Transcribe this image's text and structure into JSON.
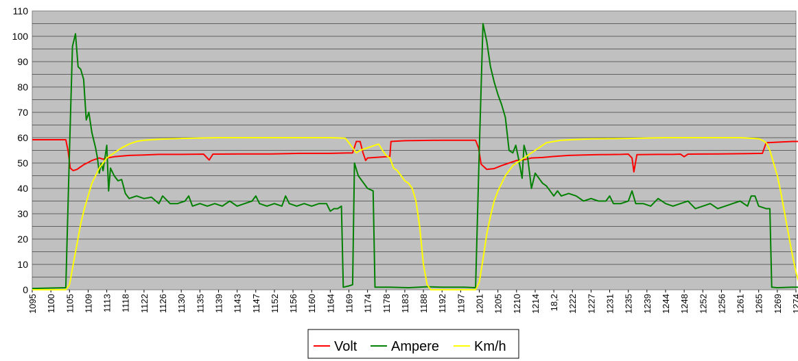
{
  "chart_data": {
    "type": "line",
    "title": "",
    "xlabel": "",
    "ylabel": "",
    "ylim": [
      0,
      110
    ],
    "y_ticks": [
      "0",
      "10",
      "20",
      "30",
      "40",
      "50",
      "60",
      "70",
      "80",
      "90",
      "100",
      "110"
    ],
    "x_tick_labels": [
      "1095",
      "1100",
      "1105",
      "1109",
      "1113",
      "1118",
      "1122",
      "1126",
      "1130",
      "1135",
      "1139",
      "1143",
      "1147",
      "1152",
      "1156",
      "1160",
      "1164",
      "1169",
      "1174",
      "1178",
      "1183",
      "1188",
      "1192",
      "1197",
      "1201",
      "1205",
      "1210",
      "1214",
      "18,2",
      "1222",
      "1227",
      "1231",
      "1235",
      "1239",
      "1244",
      "1248",
      "1252",
      "1256",
      "1261",
      "1265",
      "1269",
      "1274"
    ],
    "grid": true,
    "legend_position": "bottom",
    "background": "#c0c0c0",
    "series": [
      {
        "name": "Volt",
        "color": "#ff0000",
        "points": [
          [
            0,
            59.2
          ],
          [
            9,
            59.2
          ],
          [
            9.6,
            55
          ],
          [
            10.2,
            48
          ],
          [
            11,
            47
          ],
          [
            12,
            47.5
          ],
          [
            13,
            48.5
          ],
          [
            14,
            49.5
          ],
          [
            15,
            50.2
          ],
          [
            16,
            51
          ],
          [
            17,
            51.5
          ],
          [
            18,
            52
          ],
          [
            19,
            51.5
          ],
          [
            20,
            52
          ],
          [
            22,
            52.5
          ],
          [
            26,
            53
          ],
          [
            30,
            53.2
          ],
          [
            34,
            53.4
          ],
          [
            40,
            53.4
          ],
          [
            46,
            53.5
          ],
          [
            47.5,
            51.2
          ],
          [
            48.5,
            53.5
          ],
          [
            56,
            53.6
          ],
          [
            64,
            53.6
          ],
          [
            72,
            53.8
          ],
          [
            80,
            53.8
          ],
          [
            86,
            54
          ],
          [
            87,
            58.5
          ],
          [
            88,
            58.5
          ],
          [
            88.8,
            54
          ],
          [
            89.5,
            51
          ],
          [
            90,
            52
          ],
          [
            93,
            52.3
          ],
          [
            95,
            52.5
          ],
          [
            96,
            52.6
          ],
          [
            96.3,
            58.5
          ],
          [
            100,
            58.8
          ],
          [
            110,
            59
          ],
          [
            119,
            59
          ],
          [
            119.8,
            56
          ],
          [
            120.5,
            49.5
          ],
          [
            122,
            47.5
          ],
          [
            124,
            47.8
          ],
          [
            126,
            49
          ],
          [
            128,
            50
          ],
          [
            130,
            51
          ],
          [
            132,
            51.3
          ],
          [
            134,
            52
          ],
          [
            137,
            52.2
          ],
          [
            140,
            52.6
          ],
          [
            144,
            53
          ],
          [
            148,
            53.2
          ],
          [
            152,
            53.3
          ],
          [
            158,
            53.4
          ],
          [
            160,
            53.5
          ],
          [
            161,
            52
          ],
          [
            161.5,
            46.5
          ],
          [
            162.3,
            53.3
          ],
          [
            168,
            53.4
          ],
          [
            172,
            53.4
          ],
          [
            174,
            53.5
          ],
          [
            175,
            52.5
          ],
          [
            176,
            53.5
          ],
          [
            184,
            53.6
          ],
          [
            192,
            53.7
          ],
          [
            196,
            53.8
          ],
          [
            197,
            58
          ],
          [
            204,
            58.5
          ],
          [
            208,
            58.5
          ]
        ]
      },
      {
        "name": "Ampere",
        "color": "#008000",
        "points": [
          [
            0,
            0.5
          ],
          [
            9,
            0.8
          ],
          [
            10,
            55
          ],
          [
            10.8,
            96
          ],
          [
            11.6,
            101
          ],
          [
            12.3,
            88
          ],
          [
            13,
            87
          ],
          [
            13.8,
            83
          ],
          [
            14.5,
            67
          ],
          [
            15.2,
            70
          ],
          [
            16,
            62
          ],
          [
            17,
            56
          ],
          [
            17.5,
            52
          ],
          [
            18,
            46
          ],
          [
            18.5,
            50
          ],
          [
            19,
            47
          ],
          [
            19.5,
            52
          ],
          [
            20,
            57
          ],
          [
            20.5,
            39
          ],
          [
            21,
            48
          ],
          [
            22,
            45
          ],
          [
            23,
            43
          ],
          [
            24,
            43.5
          ],
          [
            25,
            38
          ],
          [
            26,
            36
          ],
          [
            28,
            37
          ],
          [
            30,
            36
          ],
          [
            32,
            36.5
          ],
          [
            34,
            34
          ],
          [
            35,
            37
          ],
          [
            37,
            34
          ],
          [
            39,
            34
          ],
          [
            41,
            35
          ],
          [
            42,
            37
          ],
          [
            43,
            33
          ],
          [
            45,
            34
          ],
          [
            47,
            33
          ],
          [
            49,
            34
          ],
          [
            51,
            33
          ],
          [
            53,
            35
          ],
          [
            55,
            33
          ],
          [
            57,
            34
          ],
          [
            59,
            35
          ],
          [
            60,
            37
          ],
          [
            61,
            34
          ],
          [
            63,
            33
          ],
          [
            65,
            34
          ],
          [
            67,
            33
          ],
          [
            68,
            37
          ],
          [
            69,
            34
          ],
          [
            71,
            33
          ],
          [
            73,
            34
          ],
          [
            75,
            33
          ],
          [
            77,
            34
          ],
          [
            79,
            34
          ],
          [
            80,
            31
          ],
          [
            81,
            32
          ],
          [
            82,
            32
          ],
          [
            83,
            33
          ],
          [
            83.5,
            1
          ],
          [
            85,
            1.5
          ],
          [
            86,
            2
          ],
          [
            86.5,
            50
          ],
          [
            87.5,
            45
          ],
          [
            88.5,
            43
          ],
          [
            90,
            40
          ],
          [
            91.5,
            39
          ],
          [
            92,
            1
          ],
          [
            96,
            1
          ],
          [
            101,
            0.8
          ],
          [
            106,
            1.2
          ],
          [
            110,
            1
          ],
          [
            116,
            1
          ],
          [
            119,
            0.8
          ],
          [
            120,
            55
          ],
          [
            121,
            105
          ],
          [
            122,
            98
          ],
          [
            123,
            88
          ],
          [
            124,
            82
          ],
          [
            125,
            77
          ],
          [
            126,
            73
          ],
          [
            127,
            68
          ],
          [
            128,
            55
          ],
          [
            129,
            54
          ],
          [
            129.8,
            57
          ],
          [
            130.5,
            52
          ],
          [
            131.5,
            44
          ],
          [
            132,
            57
          ],
          [
            133,
            52
          ],
          [
            134,
            40
          ],
          [
            135,
            46
          ],
          [
            136,
            44
          ],
          [
            137,
            42
          ],
          [
            138,
            41
          ],
          [
            139,
            39
          ],
          [
            140,
            37
          ],
          [
            141,
            39
          ],
          [
            142,
            37
          ],
          [
            144,
            38
          ],
          [
            146,
            37
          ],
          [
            148,
            35
          ],
          [
            150,
            36
          ],
          [
            152,
            35
          ],
          [
            154,
            35
          ],
          [
            155,
            37
          ],
          [
            156,
            34
          ],
          [
            158,
            34
          ],
          [
            160,
            35
          ],
          [
            161,
            39
          ],
          [
            162,
            34
          ],
          [
            164,
            34
          ],
          [
            166,
            33
          ],
          [
            168,
            36
          ],
          [
            170,
            34
          ],
          [
            172,
            33
          ],
          [
            174,
            34
          ],
          [
            176,
            35
          ],
          [
            178,
            32
          ],
          [
            180,
            33
          ],
          [
            182,
            34
          ],
          [
            184,
            32
          ],
          [
            186,
            33
          ],
          [
            188,
            34
          ],
          [
            190,
            35
          ],
          [
            192,
            33
          ],
          [
            193,
            37
          ],
          [
            194,
            37
          ],
          [
            195,
            33
          ],
          [
            197,
            32
          ],
          [
            198,
            32
          ],
          [
            198.5,
            1
          ],
          [
            200,
            0.8
          ],
          [
            204,
            1
          ],
          [
            208,
            1
          ]
        ]
      },
      {
        "name": "Km/h",
        "color": "#ffff00",
        "points": [
          [
            0,
            0
          ],
          [
            9,
            0
          ],
          [
            10,
            2
          ],
          [
            11,
            10
          ],
          [
            12,
            18
          ],
          [
            13,
            26
          ],
          [
            14,
            32
          ],
          [
            15,
            37
          ],
          [
            16,
            42
          ],
          [
            17,
            45
          ],
          [
            18,
            48
          ],
          [
            19,
            50
          ],
          [
            20,
            52
          ],
          [
            22,
            54
          ],
          [
            24,
            56
          ],
          [
            26,
            57.5
          ],
          [
            28,
            58.5
          ],
          [
            30,
            59
          ],
          [
            34,
            59.4
          ],
          [
            40,
            59.7
          ],
          [
            50,
            60
          ],
          [
            60,
            60
          ],
          [
            70,
            60
          ],
          [
            80,
            60
          ],
          [
            84,
            59.8
          ],
          [
            85,
            58
          ],
          [
            86,
            56
          ],
          [
            87,
            54
          ],
          [
            88,
            55
          ],
          [
            90,
            56
          ],
          [
            92,
            57
          ],
          [
            93,
            57.5
          ],
          [
            94,
            55
          ],
          [
            95,
            53
          ],
          [
            96,
            52
          ],
          [
            97,
            48
          ],
          [
            98,
            47
          ],
          [
            99,
            45
          ],
          [
            100,
            43
          ],
          [
            101,
            42
          ],
          [
            102,
            40
          ],
          [
            103,
            35
          ],
          [
            104,
            25
          ],
          [
            105,
            10
          ],
          [
            106,
            2
          ],
          [
            107,
            0
          ],
          [
            119,
            0
          ],
          [
            120,
            3
          ],
          [
            121,
            12
          ],
          [
            122,
            22
          ],
          [
            123,
            29
          ],
          [
            124,
            35
          ],
          [
            125,
            39
          ],
          [
            126,
            42
          ],
          [
            127,
            45
          ],
          [
            128,
            47
          ],
          [
            129,
            49
          ],
          [
            130,
            50
          ],
          [
            132,
            52
          ],
          [
            134,
            54
          ],
          [
            136,
            56
          ],
          [
            138,
            58
          ],
          [
            140,
            58.5
          ],
          [
            142,
            59
          ],
          [
            146,
            59.3
          ],
          [
            150,
            59.5
          ],
          [
            160,
            59.7
          ],
          [
            170,
            60
          ],
          [
            180,
            60
          ],
          [
            190,
            60
          ],
          [
            195,
            59.6
          ],
          [
            196,
            59
          ],
          [
            197,
            58
          ],
          [
            198,
            55
          ],
          [
            199,
            50
          ],
          [
            200,
            45
          ],
          [
            201,
            38
          ],
          [
            202,
            30
          ],
          [
            203,
            22
          ],
          [
            204,
            14
          ],
          [
            205,
            7
          ],
          [
            206,
            2
          ],
          [
            207,
            0
          ]
        ]
      }
    ]
  }
}
